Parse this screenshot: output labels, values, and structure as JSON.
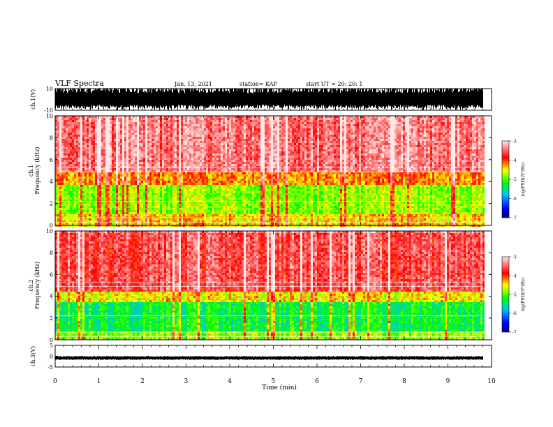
{
  "header": {
    "title": "VLF Spectra",
    "date": "Jan. 13, 2021",
    "station": "station= KAP",
    "start": "start UT =  20: 20: 1"
  },
  "chart_data": [
    {
      "type": "line",
      "name": "ch1-waveform",
      "ylabel": "ch.1(V)",
      "ylim": [
        -10,
        10
      ],
      "yticks": [
        "10",
        "-10"
      ],
      "xlim": [
        0,
        10
      ],
      "note_visual": "dense saturated black waveform spanning nearly full range"
    },
    {
      "type": "heatmap",
      "name": "ch1-spectrogram",
      "ylabel": "ch.1\nFrequency (kHz)",
      "ylim": [
        0,
        10
      ],
      "yticks": [
        "0",
        "2",
        "4",
        "6",
        "8",
        "10"
      ],
      "xlim": [
        0,
        10
      ],
      "data_end_min": 9.8,
      "colorbar": {
        "label": "log(PSD)(V²/Hz)",
        "range": [
          -7,
          -3
        ],
        "ticks": [
          "-3",
          "-4",
          "-5",
          "-6",
          "-7"
        ]
      },
      "bands": [
        {
          "f0": 0,
          "f1": 1.2,
          "level": -4.4
        },
        {
          "f0": 1.2,
          "f1": 3.8,
          "level": -4.8
        },
        {
          "f0": 3.8,
          "f1": 5.0,
          "level": -4.2
        },
        {
          "f0": 5.0,
          "f1": 10,
          "level": -3.4
        }
      ]
    },
    {
      "type": "heatmap",
      "name": "ch2-spectrogram",
      "ylabel": "ch.2\nFrequency (kHz)",
      "ylim": [
        0,
        10
      ],
      "yticks": [
        "0",
        "2",
        "4",
        "6",
        "8",
        "10"
      ],
      "xlim": [
        0,
        10
      ],
      "data_end_min": 9.8,
      "colorbar": {
        "label": "log(PSD)(V²/Hz)",
        "range": [
          -7,
          -3
        ],
        "ticks": [
          "-3",
          "-4",
          "-5",
          "-6",
          "-7"
        ]
      },
      "bands": [
        {
          "f0": 0,
          "f1": 0.8,
          "level": -4.8
        },
        {
          "f0": 0.8,
          "f1": 3.5,
          "level": -5.3
        },
        {
          "f0": 3.5,
          "f1": 4.5,
          "level": -4.5
        },
        {
          "f0": 4.5,
          "f1": 10,
          "level": -3.6
        }
      ]
    },
    {
      "type": "line",
      "name": "ch3-waveform",
      "ylabel": "ch.3(V)",
      "ylim": [
        -5,
        5
      ],
      "yticks": [
        "5",
        "0",
        "-5"
      ],
      "xlim": [
        0,
        10
      ],
      "note_visual": "thin black band near -1 V"
    }
  ],
  "xaxis": {
    "label": "Time (min)",
    "ticks": [
      "0",
      "1",
      "2",
      "3",
      "4",
      "5",
      "6",
      "7",
      "8",
      "9",
      "10"
    ]
  },
  "colors": {
    "background": "#ffffff",
    "trace": "#000000"
  }
}
